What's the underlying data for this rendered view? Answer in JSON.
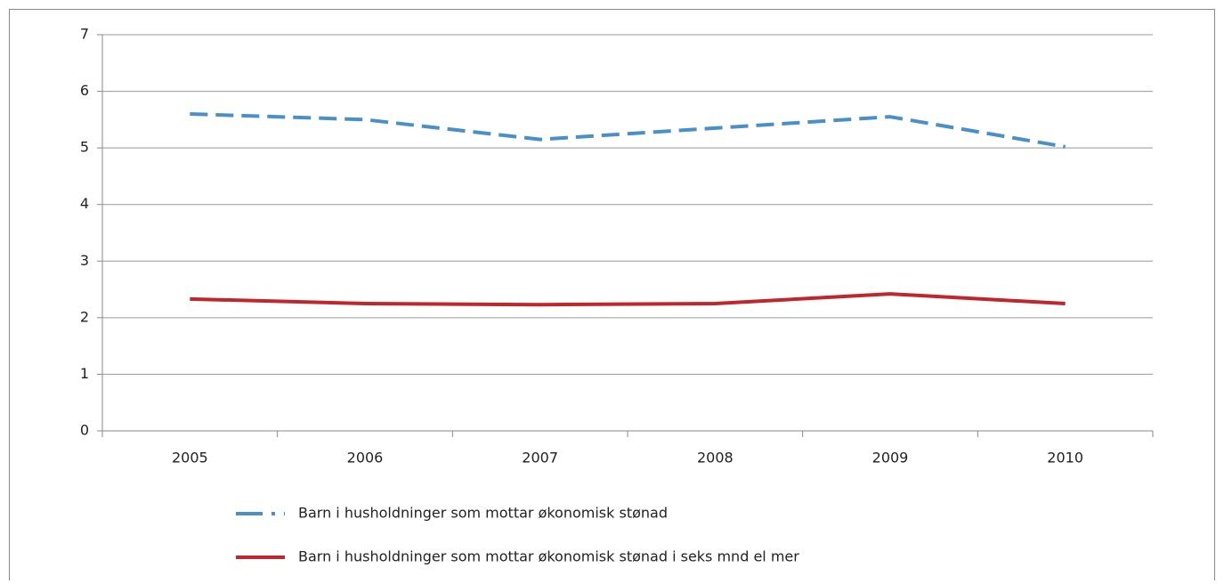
{
  "chart_data": {
    "type": "line",
    "categories": [
      "2005",
      "2006",
      "2007",
      "2008",
      "2009",
      "2010"
    ],
    "series": [
      {
        "name": "Barn i husholdninger som mottar økonomisk stønad",
        "color": "#4a90c8",
        "dashed": true,
        "values": [
          5.6,
          5.5,
          5.15,
          5.35,
          5.55,
          5.02
        ]
      },
      {
        "name": "Barn i husholdninger som mottar økonomisk stønad i seks mnd el mer",
        "color": "#c0262d",
        "dashed": false,
        "values": [
          2.33,
          2.25,
          2.23,
          2.25,
          2.42,
          2.25
        ]
      }
    ],
    "ylim": [
      0,
      7
    ],
    "yticks": [
      0,
      1,
      2,
      3,
      4,
      5,
      6,
      7
    ],
    "grid": true,
    "legend": "bottom"
  }
}
